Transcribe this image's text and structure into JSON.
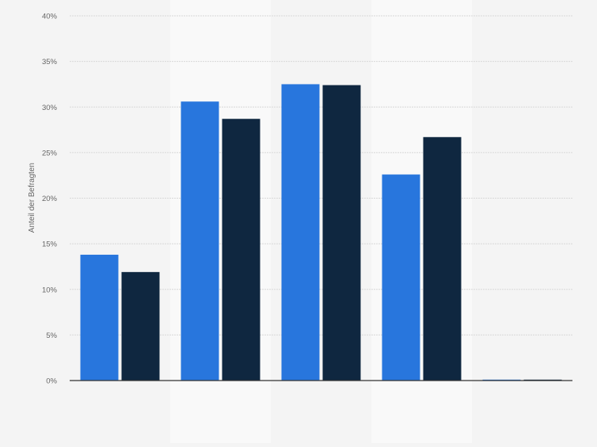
{
  "chart_data": {
    "type": "bar",
    "title": "",
    "xlabel": "",
    "ylabel": "Anteil der Befragten",
    "ylim": [
      0,
      40
    ],
    "yticks": [
      "0%",
      "5%",
      "10%",
      "15%",
      "20%",
      "25%",
      "30%",
      "35%",
      "40%"
    ],
    "ytick_values": [
      0,
      5,
      10,
      15,
      20,
      25,
      30,
      35,
      40
    ],
    "grid": true,
    "categories": [
      "",
      "",
      "",
      "",
      ""
    ],
    "series": [
      {
        "values": [
          13.8,
          30.6,
          32.5,
          22.6,
          0.1
        ],
        "color": "#2876dd"
      },
      {
        "values": [
          11.9,
          28.7,
          32.4,
          26.7,
          0.1
        ],
        "color": "#0f2740"
      }
    ]
  }
}
